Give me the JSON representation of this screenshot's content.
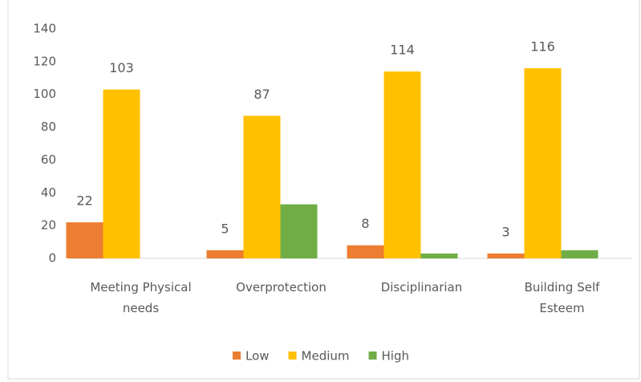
{
  "chart_data": {
    "type": "bar",
    "categories": [
      "Meeting Physical needs",
      "Overprotection",
      "Disciplinarian",
      "Building Self Esteem"
    ],
    "series": [
      {
        "name": "Low",
        "color": "#ed7d31",
        "values": [
          22,
          5,
          8,
          3
        ],
        "show_labels": true
      },
      {
        "name": "Medium",
        "color": "#ffc000",
        "values": [
          103,
          87,
          114,
          116
        ],
        "show_labels": true
      },
      {
        "name": "High",
        "color": "#70ad47",
        "values": [
          0,
          33,
          3,
          5
        ],
        "show_labels": false
      }
    ],
    "ylim": [
      0,
      140
    ],
    "yticks": [
      0,
      20,
      40,
      60,
      80,
      100,
      120,
      140
    ],
    "grid": false,
    "legend": "bottom"
  }
}
